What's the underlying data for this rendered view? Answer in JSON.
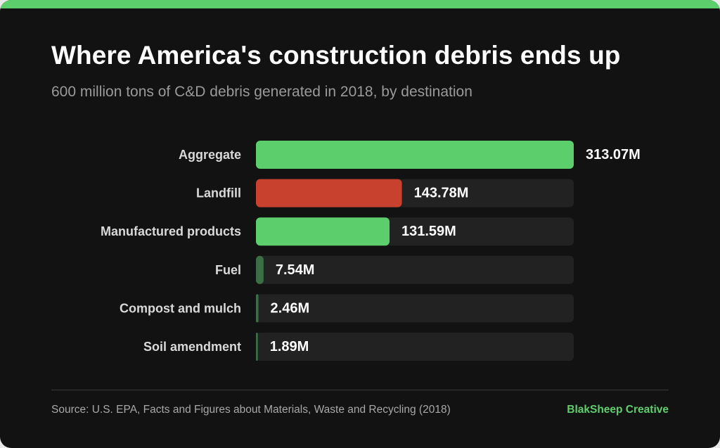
{
  "header": {
    "title": "Where America's construction debris ends up",
    "subtitle": "600 million tons of C&D debris generated in 2018, by destination"
  },
  "footer": {
    "source": "Source: U.S. EPA, Facts and Figures about Materials, Waste and Recycling (2018)",
    "brand": "BlakSheep Creative"
  },
  "colors": {
    "background": "#121212",
    "accent": "#5ccf6c",
    "landfill": "#c8412f",
    "small_bar": "#3a6f45",
    "track": "#222222",
    "category_text": "#d9d9d9",
    "value_text": "#ffffff"
  },
  "chart_data": {
    "type": "bar",
    "orientation": "horizontal",
    "unit": "M",
    "xlim": [
      0,
      313.07
    ],
    "grid": false,
    "categories": [
      "Aggregate",
      "Landfill",
      "Manufactured products",
      "Fuel",
      "Compost and mulch",
      "Soil amendment"
    ],
    "values": [
      313.07,
      143.78,
      131.59,
      7.54,
      2.46,
      1.89
    ],
    "value_labels": [
      "313.07M",
      "143.78M",
      "131.59M",
      "7.54M",
      "2.46M",
      "1.89M"
    ],
    "bar_colors": [
      "#5ccf6c",
      "#c8412f",
      "#5ccf6c",
      "#3a6f45",
      "#3a6f45",
      "#3a6f45"
    ]
  }
}
